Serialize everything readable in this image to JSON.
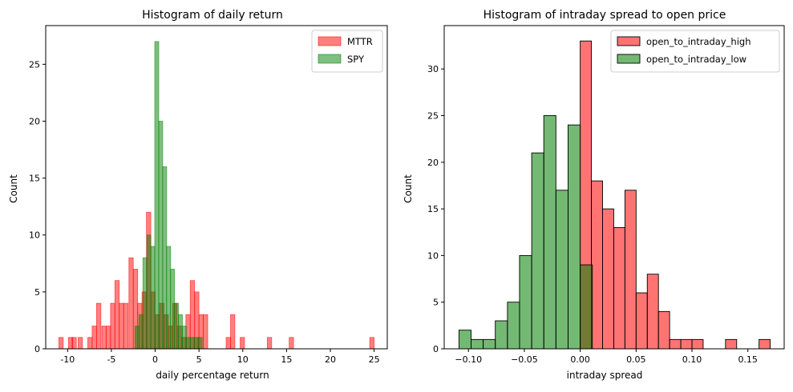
{
  "chart_data": [
    {
      "type": "histogram",
      "title": "Histogram of daily return",
      "xlabel": "daily percentage return",
      "ylabel": "Count",
      "xlim": [
        -12.5,
        26.5
      ],
      "ylim": [
        0,
        28.4
      ],
      "xticks": [
        -10,
        -5,
        0,
        5,
        10,
        15,
        20,
        25
      ],
      "yticks": [
        0,
        5,
        10,
        15,
        20,
        25
      ],
      "grid": false,
      "legend": "top-right",
      "series": [
        {
          "name": "MTTR",
          "color": "#ff0000",
          "opacity": 0.5,
          "bin_width": 0.5,
          "bins": [
            [
              -11.0,
              1
            ],
            [
              -9.9,
              1
            ],
            [
              -9.5,
              1
            ],
            [
              -8.8,
              1
            ],
            [
              -7.7,
              1
            ],
            [
              -7.2,
              2
            ],
            [
              -6.7,
              4
            ],
            [
              -6.1,
              2
            ],
            [
              -5.6,
              2
            ],
            [
              -5.1,
              4
            ],
            [
              -4.6,
              6
            ],
            [
              -4.1,
              4
            ],
            [
              -3.6,
              4
            ],
            [
              -3.0,
              8
            ],
            [
              -2.5,
              7
            ],
            [
              -2.0,
              4
            ],
            [
              -1.5,
              5
            ],
            [
              -1.0,
              12
            ],
            [
              -0.5,
              5
            ],
            [
              0.0,
              3
            ],
            [
              0.5,
              4
            ],
            [
              1.0,
              3
            ],
            [
              1.5,
              2
            ],
            [
              2.0,
              4
            ],
            [
              2.5,
              2
            ],
            [
              3.0,
              1
            ],
            [
              3.5,
              3
            ],
            [
              4.0,
              6
            ],
            [
              4.5,
              5
            ],
            [
              5.0,
              3
            ],
            [
              5.5,
              3
            ],
            [
              8.1,
              1
            ],
            [
              8.6,
              3
            ],
            [
              9.7,
              1
            ],
            [
              12.8,
              1
            ],
            [
              15.3,
              1
            ],
            [
              24.5,
              1
            ]
          ]
        },
        {
          "name": "SPY",
          "color": "#008000",
          "opacity": 0.5,
          "bin_width": 0.46,
          "bins": [
            [
              -2.3,
              2
            ],
            [
              -1.85,
              3
            ],
            [
              -1.4,
              8
            ],
            [
              -0.95,
              10
            ],
            [
              -0.5,
              9
            ],
            [
              -0.05,
              27
            ],
            [
              0.4,
              20
            ],
            [
              0.85,
              16
            ],
            [
              1.3,
              9
            ],
            [
              1.75,
              7
            ],
            [
              2.2,
              4
            ],
            [
              2.65,
              3
            ],
            [
              3.1,
              2
            ],
            [
              3.55,
              1
            ],
            [
              4.0,
              1
            ],
            [
              4.45,
              1
            ],
            [
              4.9,
              1
            ]
          ]
        }
      ]
    },
    {
      "type": "histogram",
      "title": "Histogram of intraday spread to open price",
      "xlabel": "intraday spread",
      "ylabel": "Count",
      "xlim": [
        -0.1217,
        0.1825
      ],
      "ylim": [
        0,
        34.65
      ],
      "xticks": [
        -0.1,
        -0.05,
        0.0,
        0.05,
        0.1,
        0.15
      ],
      "xtick_labels": [
        "−0.10",
        "−0.05",
        "0.00",
        "0.05",
        "0.10",
        "0.15"
      ],
      "yticks": [
        0,
        5,
        10,
        15,
        20,
        25,
        30
      ],
      "grid": false,
      "legend": "top-right",
      "series": [
        {
          "name": "open_to_intraday_high",
          "color": "#ff0000",
          "opacity": 0.55,
          "bin_width": 0.01,
          "bins": [
            [
              0.0,
              33
            ],
            [
              0.01,
              18
            ],
            [
              0.02,
              15
            ],
            [
              0.03,
              13
            ],
            [
              0.04,
              17
            ],
            [
              0.05,
              6
            ],
            [
              0.06,
              8
            ],
            [
              0.07,
              4
            ],
            [
              0.08,
              1
            ],
            [
              0.09,
              1
            ],
            [
              0.1,
              1
            ],
            [
              0.11,
              0
            ],
            [
              0.12,
              0
            ],
            [
              0.13,
              1
            ],
            [
              0.14,
              0
            ],
            [
              0.15,
              0
            ],
            [
              0.16,
              1
            ]
          ]
        },
        {
          "name": "open_to_intraday_low",
          "color": "#008000",
          "opacity": 0.55,
          "bin_width": 0.01085,
          "bins": [
            [
              -0.1085,
              2
            ],
            [
              -0.0977,
              1
            ],
            [
              -0.0868,
              1
            ],
            [
              -0.076,
              3
            ],
            [
              -0.0651,
              5
            ],
            [
              -0.0543,
              10
            ],
            [
              -0.0434,
              21
            ],
            [
              -0.0326,
              25
            ],
            [
              -0.0217,
              17
            ],
            [
              -0.0109,
              24
            ],
            [
              0.0,
              9
            ]
          ]
        }
      ]
    }
  ]
}
